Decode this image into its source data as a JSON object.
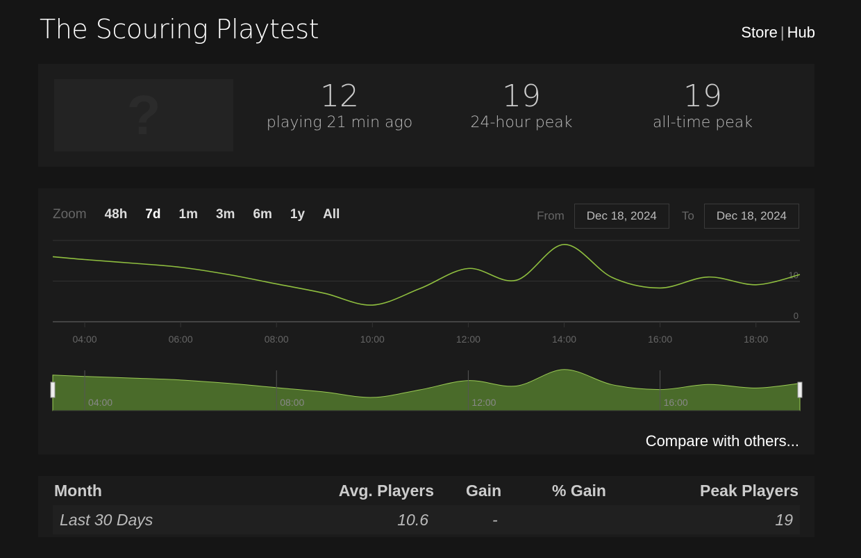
{
  "header": {
    "title": "The Scouring Playtest",
    "store": "Store",
    "separator": "|",
    "hub": "Hub"
  },
  "capsule": {
    "placeholder": "?"
  },
  "stats": [
    {
      "value": "12",
      "label": "playing 21 min ago"
    },
    {
      "value": "19",
      "label": "24-hour peak"
    },
    {
      "value": "19",
      "label": "all-time peak"
    }
  ],
  "zoom": {
    "label": "Zoom",
    "options": [
      "48h",
      "7d",
      "1m",
      "3m",
      "6m",
      "1y",
      "All"
    ],
    "selected": "7d"
  },
  "range": {
    "from_label": "From",
    "from": "Dec 18, 2024",
    "to_label": "To",
    "to": "Dec 18, 2024"
  },
  "compare": "Compare with others...",
  "colors": {
    "line": "#8fbf3f",
    "navigator_fill": "#4a6b2a"
  },
  "chart_data": {
    "type": "line",
    "x": [
      "03:20",
      "04:00",
      "05:00",
      "06:00",
      "07:00",
      "08:00",
      "09:00",
      "10:00",
      "11:00",
      "12:00",
      "13:00",
      "14:00",
      "15:00",
      "16:00",
      "17:00",
      "18:00",
      "18:55"
    ],
    "series": [
      {
        "values": [
          16,
          15.3,
          14.4,
          13.4,
          11.6,
          9.3,
          7,
          4.1,
          8.2,
          13.1,
          10.2,
          19,
          10.9,
          8.3,
          11,
          9.1,
          11.6
        ]
      }
    ],
    "ylim": [
      0,
      20
    ],
    "yticks": [
      "0",
      "10"
    ],
    "xticks": [
      "04:00",
      "06:00",
      "08:00",
      "10:00",
      "12:00",
      "14:00",
      "16:00",
      "18:00"
    ],
    "navigator_ticks": [
      "04:00",
      "08:00",
      "12:00",
      "16:00"
    ],
    "grid": true
  },
  "table": {
    "headers": [
      "Month",
      "Avg. Players",
      "Gain",
      "% Gain",
      "Peak Players"
    ],
    "rows": [
      [
        "Last 30 Days",
        "10.6",
        "-",
        "",
        "19"
      ]
    ]
  }
}
